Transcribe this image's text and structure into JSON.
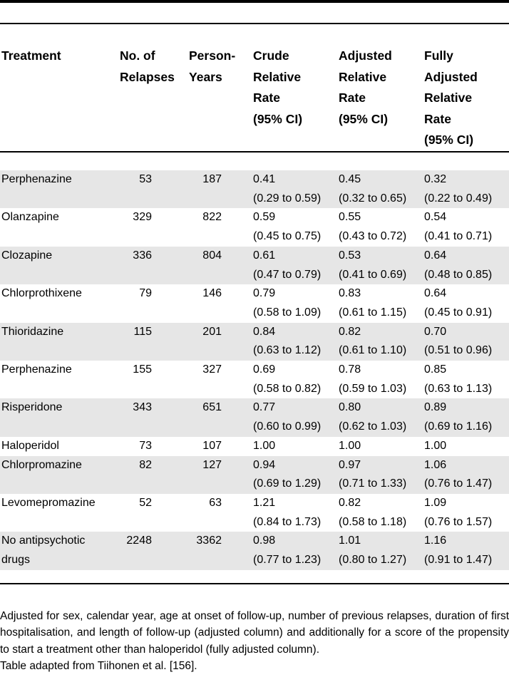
{
  "colors": {
    "row_stripe": "#e6e6e6",
    "rule": "#000000",
    "text": "#000000",
    "background": "#ffffff"
  },
  "table": {
    "headers": [
      "Treatment",
      "No. of\nRelapses",
      "Person-\nYears",
      "Crude\nRelative\nRate\n(95% CI)",
      "Adjusted\nRelative\nRate\n(95% CI)",
      "Fully\nAdjusted\nRelative\nRate\n(95% CI)"
    ],
    "rows": [
      {
        "treatment": "Perphenazine",
        "relapses": "53",
        "person_years": "187",
        "crude": "0.41\n(0.29 to 0.59)",
        "adjusted": "0.45\n(0.32 to 0.65)",
        "fully_adjusted": "0.32\n(0.22 to 0.49)"
      },
      {
        "treatment": "Olanzapine",
        "relapses": "329",
        "person_years": "822",
        "crude": "0.59\n(0.45 to 0.75)",
        "adjusted": "0.55\n(0.43 to 0.72)",
        "fully_adjusted": "0.54\n(0.41 to 0.71)"
      },
      {
        "treatment": "Clozapine",
        "relapses": "336",
        "person_years": "804",
        "crude": "0.61\n(0.47 to 0.79)",
        "adjusted": "0.53\n(0.41 to 0.69)",
        "fully_adjusted": "0.64\n(0.48 to 0.85)"
      },
      {
        "treatment": "Chlorprothixene",
        "relapses": "79",
        "person_years": "146",
        "crude": "0.79\n(0.58 to 1.09)",
        "adjusted": "0.83\n(0.61 to 1.15)",
        "fully_adjusted": "0.64\n(0.45 to 0.91)"
      },
      {
        "treatment": "Thioridazine",
        "relapses": "115",
        "person_years": "201",
        "crude": "0.84\n(0.63 to 1.12)",
        "adjusted": "0.82\n(0.61 to 1.10)",
        "fully_adjusted": "0.70\n(0.51 to 0.96)"
      },
      {
        "treatment": "Perphenazine",
        "relapses": "155",
        "person_years": "327",
        "crude": "0.69\n(0.58 to 0.82)",
        "adjusted": "0.78\n(0.59 to 1.03)",
        "fully_adjusted": "0.85\n(0.63 to 1.13)"
      },
      {
        "treatment": "Risperidone",
        "relapses": "343",
        "person_years": "651",
        "crude": "0.77\n(0.60 to 0.99)",
        "adjusted": "0.80\n(0.62 to 1.03)",
        "fully_adjusted": "0.89\n(0.69 to 1.16)"
      },
      {
        "treatment": "Haloperidol",
        "relapses": "73",
        "person_years": "107",
        "crude": "1.00",
        "adjusted": "1.00",
        "fully_adjusted": "1.00"
      },
      {
        "treatment": "Chlorpromazine",
        "relapses": "82",
        "person_years": "127",
        "crude": "0.94\n(0.69 to 1.29)",
        "adjusted": "0.97\n(0.71 to 1.33)",
        "fully_adjusted": "1.06\n(0.76 to 1.47)"
      },
      {
        "treatment": "Levomepromazine",
        "relapses": "52",
        "person_years": "63",
        "crude": "1.21\n(0.84 to 1.73)",
        "adjusted": "0.82\n(0.58 to 1.18)",
        "fully_adjusted": "1.09\n(0.76 to 1.57)"
      },
      {
        "treatment": "No antipsychotic drugs",
        "relapses": "2248",
        "person_years": "3362",
        "crude": "0.98\n(0.77 to 1.23)",
        "adjusted": "1.01\n(0.80 to 1.27)",
        "fully_adjusted": "1.16\n(0.91 to 1.47)"
      }
    ]
  },
  "footnotes": {
    "adjustment_note": "Adjusted for sex, calendar year, age at onset of follow-up, number of previous relapses, duration of first hospitalisation, and length of follow-up (adjusted column) and additionally for a score of the propensity to start a treatment other than haloperidol (fully adjusted column).",
    "source_note": "Table adapted from Tiihonen et al. [156]."
  }
}
